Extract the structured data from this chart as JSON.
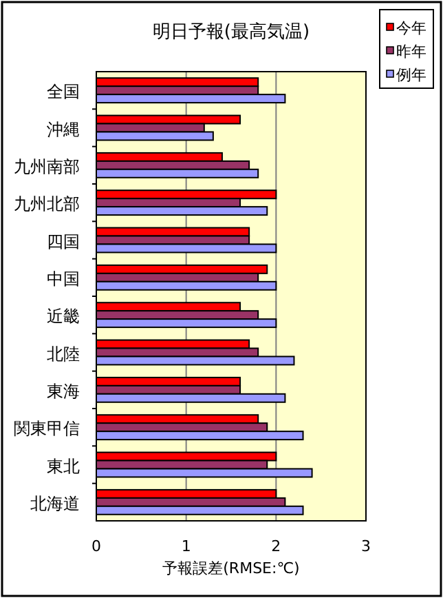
{
  "chart_data": {
    "type": "bar",
    "orientation": "horizontal",
    "title": "明日予報(最高気温)",
    "xlabel": "予報誤差(RMSE:℃)",
    "categories": [
      "全国",
      "沖縄",
      "九州南部",
      "九州北部",
      "四国",
      "中国",
      "近畿",
      "北陸",
      "東海",
      "関東甲信",
      "東北",
      "北海道"
    ],
    "series": [
      {
        "name": "今年",
        "color": "#ff0000",
        "values": [
          1.8,
          1.6,
          1.4,
          2.0,
          1.7,
          1.9,
          1.6,
          1.7,
          1.6,
          1.8,
          2.0,
          2.0
        ]
      },
      {
        "name": "昨年",
        "color": "#993366",
        "values": [
          1.8,
          1.2,
          1.7,
          1.6,
          1.7,
          1.8,
          1.8,
          1.8,
          1.6,
          1.9,
          1.9,
          2.1
        ]
      },
      {
        "name": "例年",
        "color": "#9999ff",
        "values": [
          2.1,
          1.3,
          1.8,
          1.9,
          2.0,
          2.0,
          2.0,
          2.2,
          2.1,
          2.3,
          2.4,
          2.3
        ]
      }
    ],
    "xlim": [
      0,
      3
    ],
    "xticks": [
      0,
      1,
      2,
      3
    ],
    "grid": "x",
    "legend": "top right"
  }
}
